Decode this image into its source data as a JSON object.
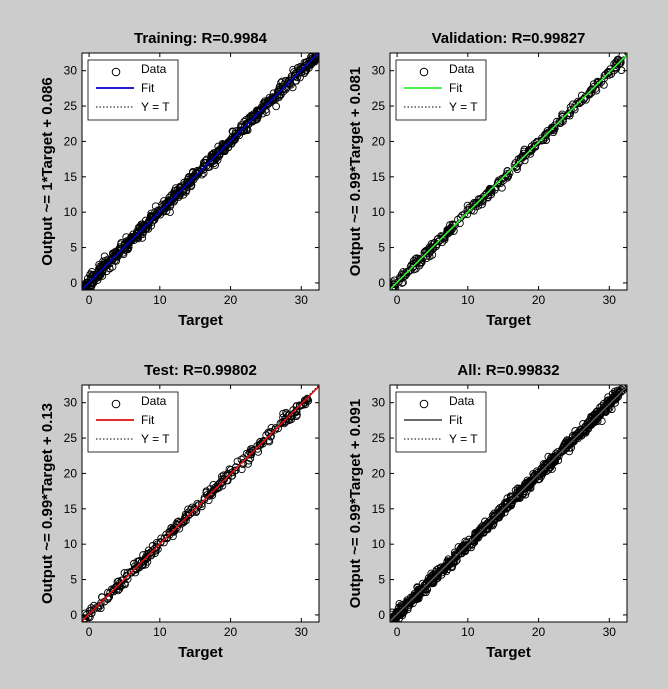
{
  "chart_data": [
    {
      "type": "scatter",
      "title": "Training: R=0.9984",
      "xlabel": "Target",
      "ylabel": "Output ~= 1*Target + 0.086",
      "xlim": [
        -1,
        32.5
      ],
      "ylim": [
        -1,
        32.5
      ],
      "xticks": [
        0,
        10,
        20,
        30
      ],
      "yticks": [
        0,
        5,
        10,
        15,
        20,
        25,
        30
      ],
      "fit": {
        "slope": 1,
        "intercept": 0.086,
        "color": "#0000cc"
      },
      "legend": {
        "position": "top-left",
        "entries": [
          "Data",
          "Fit",
          "Y = T"
        ]
      },
      "data_range": [
        -0.8,
        32
      ],
      "spread": 0.45,
      "point_count": 620,
      "grid": false
    },
    {
      "type": "scatter",
      "title": "Validation: R=0.99827",
      "xlabel": "Target",
      "ylabel": "Output ~= 0.99*Target + 0.081",
      "xlim": [
        -1,
        32.5
      ],
      "ylim": [
        -1,
        32.5
      ],
      "xticks": [
        0,
        10,
        20,
        30
      ],
      "yticks": [
        0,
        5,
        10,
        15,
        20,
        25,
        30
      ],
      "fit": {
        "slope": 0.99,
        "intercept": 0.081,
        "color": "#33ee33"
      },
      "legend": {
        "position": "top-left",
        "entries": [
          "Data",
          "Fit",
          "Y = T"
        ]
      },
      "data_range": [
        -0.7,
        32
      ],
      "spread": 0.4,
      "point_count": 300,
      "grid": false
    },
    {
      "type": "scatter",
      "title": "Test: R=0.99802",
      "xlabel": "Target",
      "ylabel": "Output ~= 0.99*Target + 0.13",
      "xlim": [
        -1,
        32.5
      ],
      "ylim": [
        -1,
        32.5
      ],
      "xticks": [
        0,
        10,
        20,
        30
      ],
      "yticks": [
        0,
        5,
        10,
        15,
        20,
        25,
        30
      ],
      "fit": {
        "slope": 0.99,
        "intercept": 0.13,
        "color": "#dd1111"
      },
      "legend": {
        "position": "top-left",
        "entries": [
          "Data",
          "Fit",
          "Y = T"
        ]
      },
      "data_range": [
        -0.8,
        31
      ],
      "spread": 0.45,
      "point_count": 280,
      "grid": false
    },
    {
      "type": "scatter",
      "title": "All: R=0.99832",
      "xlabel": "Target",
      "ylabel": "Output ~= 0.99*Target + 0.091",
      "xlim": [
        -1,
        32.5
      ],
      "ylim": [
        -1,
        32.5
      ],
      "xticks": [
        0,
        10,
        20,
        30
      ],
      "yticks": [
        0,
        5,
        10,
        15,
        20,
        25,
        30
      ],
      "fit": {
        "slope": 0.99,
        "intercept": 0.091,
        "color": "#555555"
      },
      "legend": {
        "position": "top-left",
        "entries": [
          "Data",
          "Fit",
          "Y = T"
        ]
      },
      "data_range": [
        -0.8,
        32
      ],
      "spread": 0.45,
      "point_count": 700,
      "grid": false
    }
  ],
  "colors": {
    "background": "#cccccc",
    "axes_background": "#ffffff",
    "markers": "#000000"
  }
}
